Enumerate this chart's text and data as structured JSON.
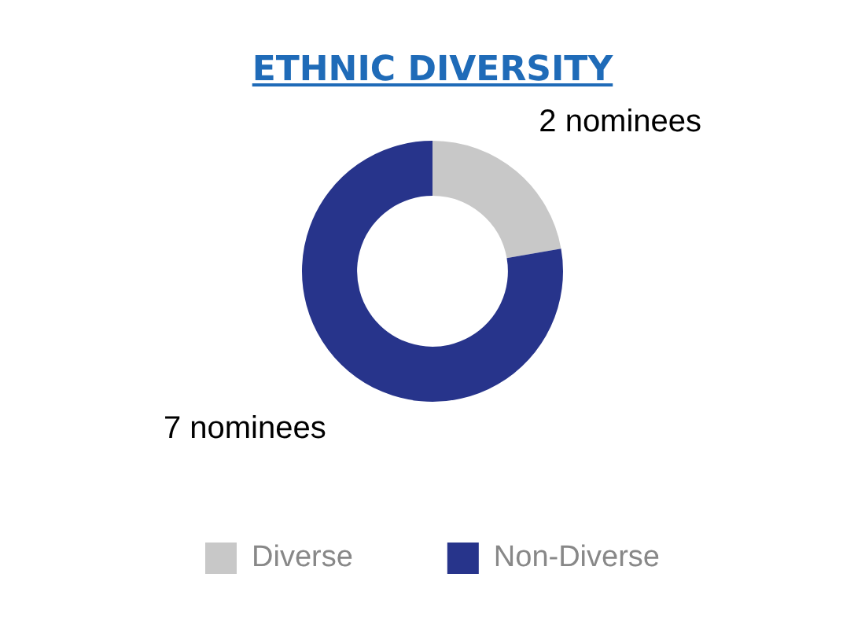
{
  "chart_data": {
    "type": "donut",
    "title": "ETHNIC DIVERSITY",
    "categories": [
      "Diverse",
      "Non-Diverse"
    ],
    "values": [
      2,
      7
    ],
    "colors": [
      "#c8c8c8",
      "#27348b"
    ],
    "value_labels": [
      "2 nominees",
      "7 nominees"
    ],
    "legend": "bottom"
  }
}
